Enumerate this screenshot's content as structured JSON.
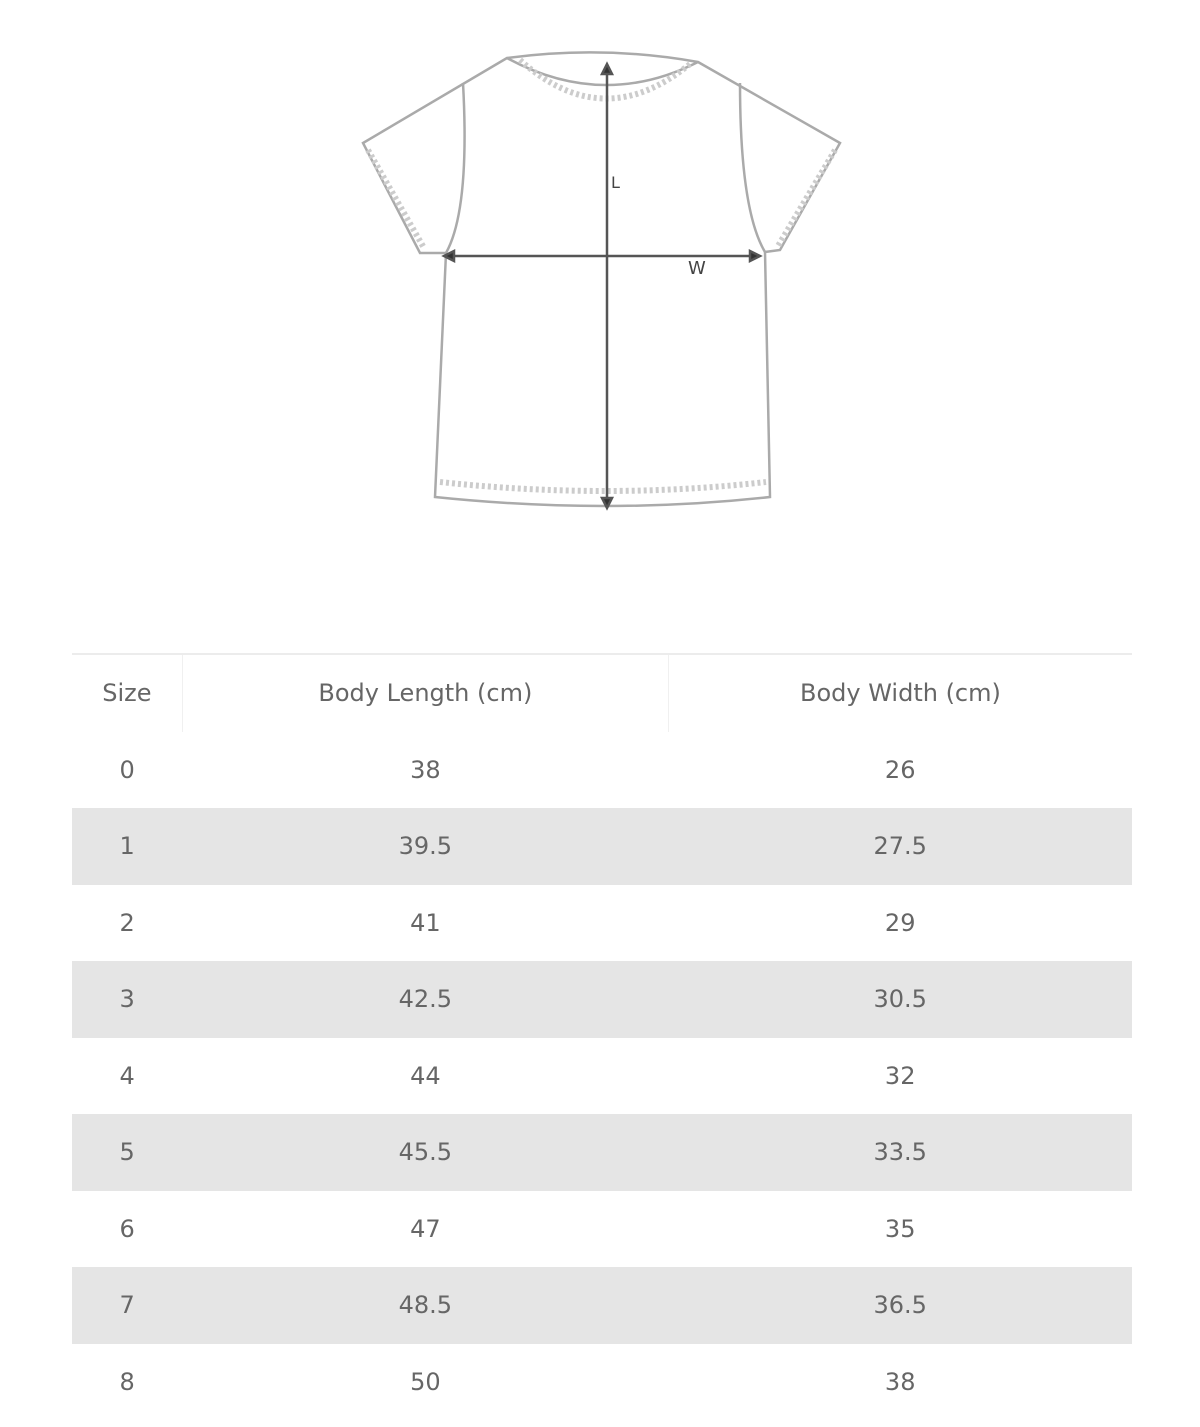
{
  "diagram": {
    "length_label": "L",
    "width_label": "W"
  },
  "table": {
    "headers": [
      "Size",
      "Body Length (cm)",
      "Body Width (cm)"
    ],
    "rows": [
      [
        "0",
        "38",
        "26"
      ],
      [
        "1",
        "39.5",
        "27.5"
      ],
      [
        "2",
        "41",
        "29"
      ],
      [
        "3",
        "42.5",
        "30.5"
      ],
      [
        "4",
        "44",
        "32"
      ],
      [
        "5",
        "45.5",
        "33.5"
      ],
      [
        "6",
        "47",
        "35"
      ],
      [
        "7",
        "48.5",
        "36.5"
      ],
      [
        "8",
        "50",
        "38"
      ]
    ],
    "stripe_color": "#e5e5e5"
  }
}
